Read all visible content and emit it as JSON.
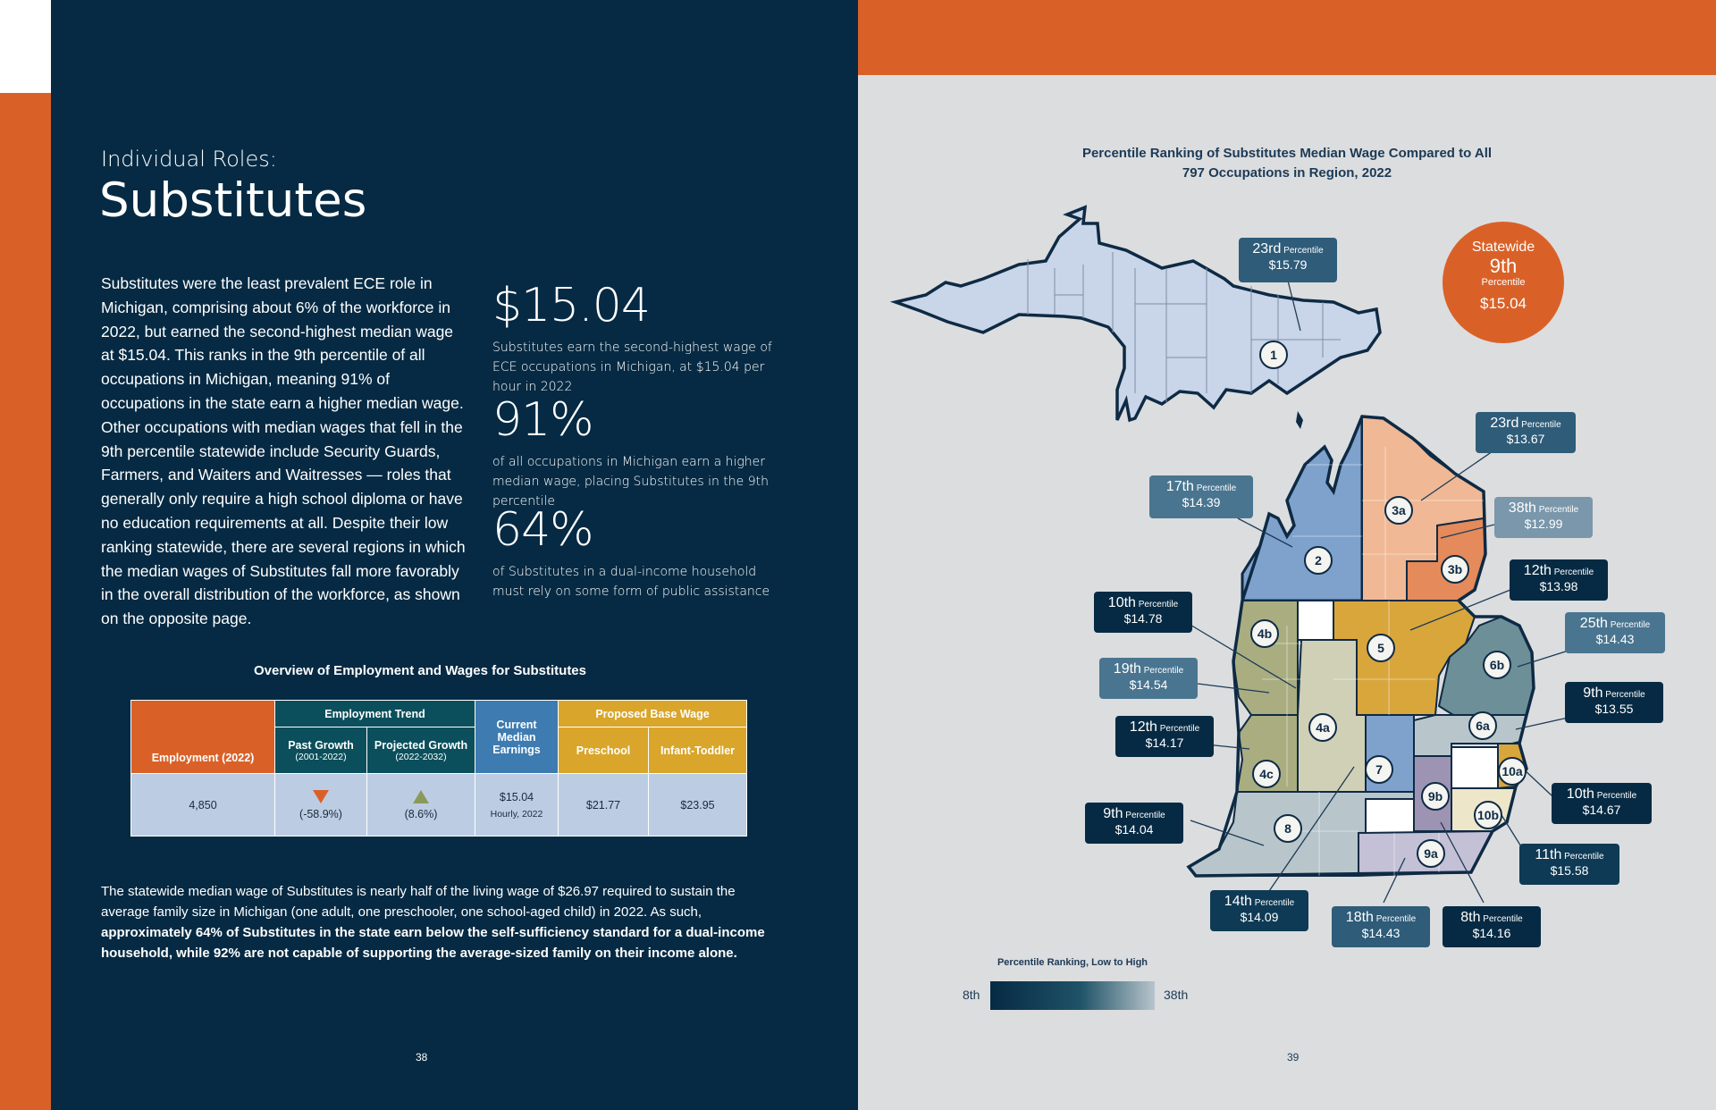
{
  "left": {
    "kicker": "Individual Roles:",
    "title": "Substitutes",
    "body": "Substitutes were the least prevalent ECE role in Michigan, comprising about 6% of the workforce in 2022, but earned the second-highest median wage at $15.04. This ranks in the 9th percentile of all occupations in Michigan, meaning 91% of occupations in the state earn a higher median wage. Other occupations with median wages that fell in the 9th percentile statewide include Security Guards, Farmers, and Waiters and Waitresses — roles that generally only require a high school diploma or have no education requirements at all. Despite their low ranking statewide, there are several regions in which the median wages of Substitutes fall more favorably in the overall distribution of the workforce, as shown on the opposite page.",
    "stats": [
      {
        "value": "$15.04",
        "desc": "Substitutes earn the second-highest wage of ECE occupations in Michigan, at $15.04 per hour in 2022"
      },
      {
        "value": "91%",
        "desc": "of all occupations in Michigan earn a higher median wage, placing Substitutes in the 9th percentile"
      },
      {
        "value": "64%",
        "desc": "of Substitutes in a dual-income household must rely on some form of public assistance"
      }
    ],
    "table": {
      "title": "Overview of Employment and Wages for Substitutes",
      "employment_header": "Employment (2022)",
      "trend_header": "Employment Trend",
      "past_header": "Past Growth",
      "past_sub": "(2001-2022)",
      "proj_header": "Projected Growth",
      "proj_sub": "(2022-2032)",
      "median_header": "Current Median Earnings",
      "wage_header": "Proposed Base Wage",
      "preschool_header": "Preschool",
      "infant_header": "Infant-Toddler",
      "employment": "4,850",
      "past": "(-58.9%)",
      "proj": "(8.6%)",
      "median": "$15.04",
      "median_sub": "Hourly, 2022",
      "preschool": "$21.77",
      "infant": "$23.95"
    },
    "bottom_normal": "The statewide median wage of Substitutes is nearly half of the living wage of $26.97 required to sustain the average family size in Michigan (one adult, one preschooler, one school-aged child) in 2022. As such, ",
    "bottom_bold": "approximately 64% of Substitutes in the state earn below the self-sufficiency standard for a dual-income household, while 92% are not capable of supporting the average-sized family on their income alone.",
    "page": "38"
  },
  "right": {
    "map_title_1": "Percentile Ranking of Substitutes Median Wage Compared to All",
    "map_title_2": "797 Occupations in Region, 2022",
    "statewide": {
      "label": "Statewide",
      "rank": "9th",
      "pct": "Percentile",
      "wage": "$15.04"
    },
    "percentile_word": "Percentile",
    "regions": [
      "1",
      "2",
      "3a",
      "3b",
      "4a",
      "4b",
      "4c",
      "5",
      "6a",
      "6b",
      "7",
      "8",
      "9a",
      "9b",
      "10a",
      "10b"
    ],
    "callouts": [
      {
        "rank": "23rd",
        "wage": "$15.79"
      },
      {
        "rank": "23rd",
        "wage": "$13.67"
      },
      {
        "rank": "17th",
        "wage": "$14.39"
      },
      {
        "rank": "38th",
        "wage": "$12.99"
      },
      {
        "rank": "12th",
        "wage": "$13.98"
      },
      {
        "rank": "10th",
        "wage": "$14.78"
      },
      {
        "rank": "25th",
        "wage": "$14.43"
      },
      {
        "rank": "19th",
        "wage": "$14.54"
      },
      {
        "rank": "9th",
        "wage": "$13.55"
      },
      {
        "rank": "12th",
        "wage": "$14.17"
      },
      {
        "rank": "10th",
        "wage": "$14.67"
      },
      {
        "rank": "9th",
        "wage": "$14.04"
      },
      {
        "rank": "11th",
        "wage": "$15.58"
      },
      {
        "rank": "14th",
        "wage": "$14.09"
      },
      {
        "rank": "18th",
        "wage": "$14.43"
      },
      {
        "rank": "8th",
        "wage": "$14.16"
      }
    ],
    "legend": {
      "title": "Percentile Ranking, Low to High",
      "low": "8th",
      "high": "38th"
    },
    "page": "39",
    "colors": {
      "navy": "#062a43",
      "orange": "#d96128",
      "region1": "#c9d5e8",
      "region2": "#7ea2cc",
      "region3a": "#f0b895",
      "region3b": "#e48a5b",
      "region4a": "#d0d0b6",
      "region4b": "#a9ad80",
      "region5": "#d9a63c",
      "region6": "#6d8f97",
      "region7": "#7ea2cc",
      "region8": "#b8c6cc",
      "region9a": "#c4c0d6",
      "region9b": "#9d93b3"
    }
  }
}
